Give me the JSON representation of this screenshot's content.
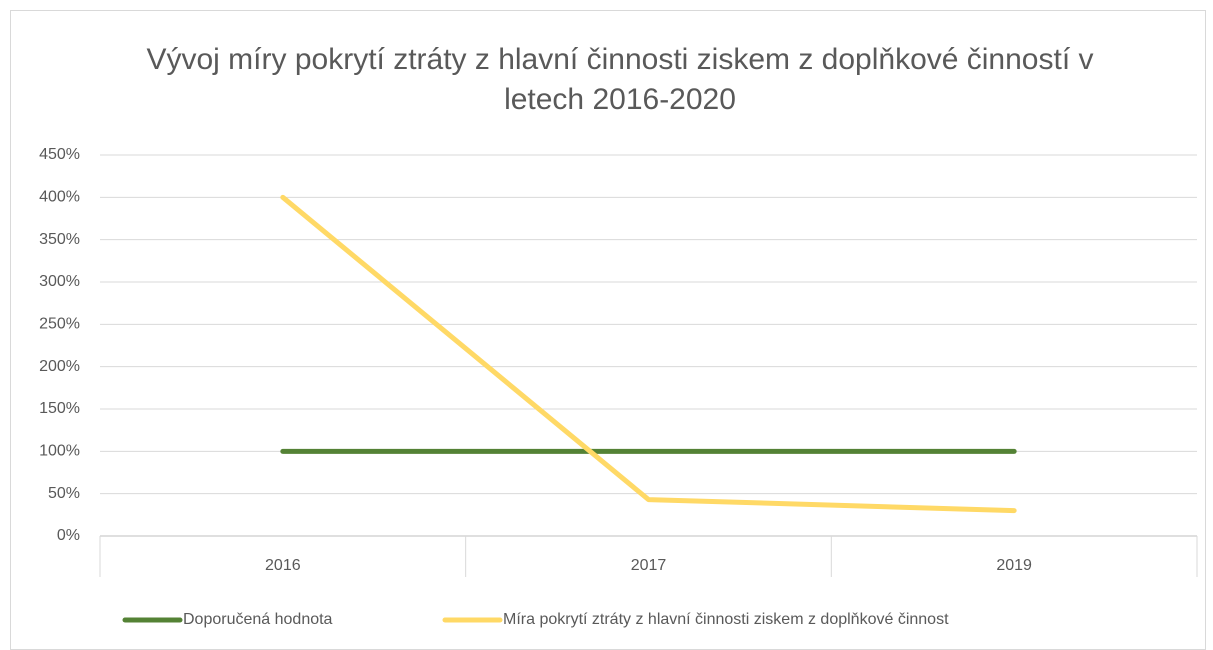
{
  "chart_data": {
    "type": "line",
    "title": "Vývoj míry pokrytí ztráty z hlavní činnosti ziskem z doplňkové činností v letech 2016-2020",
    "categories": [
      "2016",
      "2017",
      "2019"
    ],
    "series": [
      {
        "name": "Doporučená hodnota",
        "color": "#548235",
        "values": [
          100,
          100,
          100
        ]
      },
      {
        "name": "Míra pokrytí ztráty z hlavní činnosti ziskem z doplňkové činnost",
        "color": "#ffd966",
        "values": [
          400,
          43,
          30
        ]
      }
    ],
    "ylim": [
      0,
      450
    ],
    "yticks": [
      {
        "value": 0,
        "label": "0%"
      },
      {
        "value": 50,
        "label": "50%"
      },
      {
        "value": 100,
        "label": "100%"
      },
      {
        "value": 150,
        "label": "150%"
      },
      {
        "value": 200,
        "label": "200%"
      },
      {
        "value": 250,
        "label": "250%"
      },
      {
        "value": 300,
        "label": "300%"
      },
      {
        "value": 350,
        "label": "350%"
      },
      {
        "value": 400,
        "label": "400%"
      },
      {
        "value": 450,
        "label": "450%"
      }
    ],
    "grid": true,
    "legend": "bottom"
  }
}
